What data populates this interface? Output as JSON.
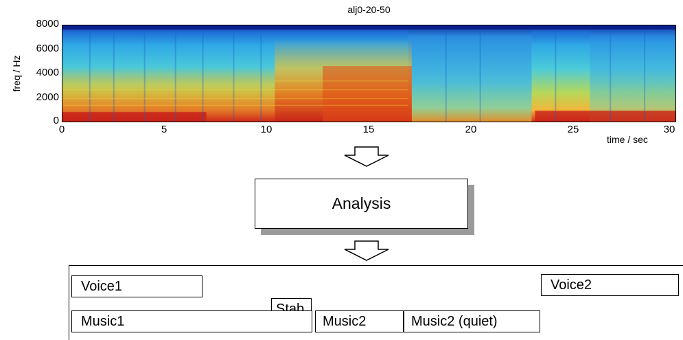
{
  "spectrogram": {
    "title": "alj0-20-50",
    "ylabel": "freq / Hz",
    "xlabel": "time / sec",
    "yticks": [
      "8000",
      "6000",
      "4000",
      "2000",
      "0"
    ],
    "xticks": [
      "0",
      "5",
      "10",
      "15",
      "20",
      "25",
      "30"
    ]
  },
  "analysis": {
    "label": "Analysis"
  },
  "segments": {
    "voice1": "Voice1",
    "voice2": "Voice2",
    "stab": "Stab",
    "music1": "Music1",
    "music2": "Music2",
    "music2_quiet": "Music2 (quiet)"
  }
}
